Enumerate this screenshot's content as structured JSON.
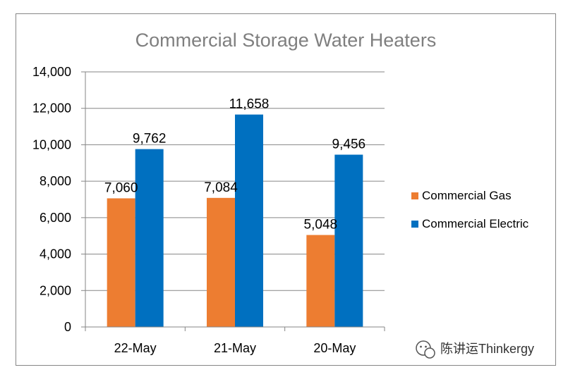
{
  "chart_data": {
    "type": "bar",
    "title": "Commercial Storage Water Heaters",
    "categories": [
      "22-May",
      "21-May",
      "20-May"
    ],
    "series": [
      {
        "name": "Commercial Gas",
        "values": [
          7060,
          7084,
          5048
        ],
        "color": "#ED7D31"
      },
      {
        "name": "Commercial Electric",
        "values": [
          9762,
          11658,
          9456
        ],
        "color": "#0070C0"
      }
    ],
    "data_labels": {
      "Commercial Gas": [
        "7,060",
        "7,084",
        "5,048"
      ],
      "Commercial Electric": [
        "9,762",
        "11,658",
        "9,456"
      ]
    },
    "ylim": [
      0,
      14000
    ],
    "yticks": [
      0,
      2000,
      4000,
      6000,
      8000,
      10000,
      12000,
      14000
    ],
    "ytick_labels": [
      "0",
      "2,000",
      "4,000",
      "6,000",
      "8,000",
      "10,000",
      "12,000",
      "14,000"
    ],
    "grid": true,
    "legend_position": "right"
  },
  "watermark": {
    "text": "陈讲运Thinkergy",
    "icon": "wechat-icon"
  }
}
